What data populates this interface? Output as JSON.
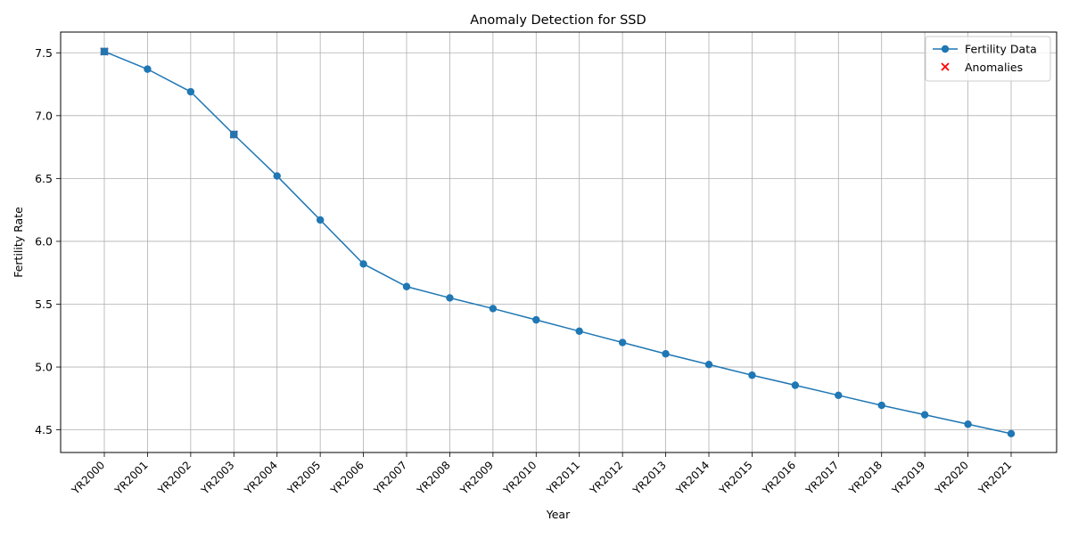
{
  "chart_data": {
    "type": "line",
    "title": "Anomaly Detection for SSD",
    "xlabel": "Year",
    "ylabel": "Fertility Rate",
    "categories": [
      "YR2000",
      "YR2001",
      "YR2002",
      "YR2003",
      "YR2004",
      "YR2005",
      "YR2006",
      "YR2007",
      "YR2008",
      "YR2009",
      "YR2010",
      "YR2011",
      "YR2012",
      "YR2013",
      "YR2014",
      "YR2015",
      "YR2016",
      "YR2017",
      "YR2018",
      "YR2019",
      "YR2020",
      "YR2021"
    ],
    "series": [
      {
        "name": "Fertility Data",
        "color": "#1f77b4",
        "values": [
          7.51,
          7.37,
          7.19,
          6.85,
          6.52,
          6.17,
          5.82,
          5.64,
          5.55,
          5.465,
          5.375,
          5.285,
          5.195,
          5.105,
          5.02,
          4.935,
          4.855,
          4.775,
          4.695,
          4.62,
          4.545,
          4.47
        ]
      }
    ],
    "anomalies": {
      "name": "Anomalies",
      "color": "#ff0000",
      "categories": [
        "YR2000",
        "YR2003"
      ],
      "values": [
        7.51,
        6.85
      ]
    },
    "ylim": [
      4.32,
      7.665
    ],
    "yticks": [
      4.5,
      5.0,
      5.5,
      6.0,
      6.5,
      7.0,
      7.5
    ],
    "ytick_labels": [
      "4.5",
      "5.0",
      "5.5",
      "6.0",
      "6.5",
      "7.0",
      "7.5"
    ],
    "grid": true,
    "legend_position": "top-right"
  }
}
